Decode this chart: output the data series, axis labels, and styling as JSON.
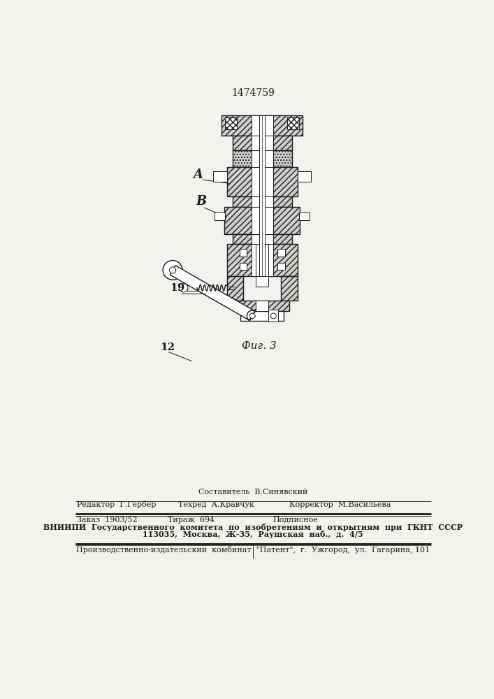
{
  "patent_number": "1474759",
  "figure_caption": "Фиг. 3",
  "label_A": "A",
  "label_B": "B",
  "label_19": "19",
  "label_12": "12",
  "footer_sestavitel": "Составитель  В.Синявский",
  "footer_redaktor": "Редактор  Г.Гербер",
  "footer_tekhred": "Техред  А.Кравчук",
  "footer_korrektor": "Корректор  М.Васильева",
  "footer_zakaz": "Заказ  1903/52",
  "footer_tirazh": "Тираж  694",
  "footer_podpisnoe": "Подписное",
  "footer_vniipи": "ВНИИПИ  Государственного  комитета  по  изобретениям  и  открытиям  при  ГКНТ  СССР",
  "footer_address": "113035,  Москва,  Ж-35,  Раушская  наб.,  д.  4/5",
  "footer_kombinat": "Производственно-издательский  комбинат  \"Патент\",  г.  Ужгород,  ул.  Гагарина, 101",
  "bg_color": "#f2f2ee",
  "line_color": "#1a1a1a"
}
